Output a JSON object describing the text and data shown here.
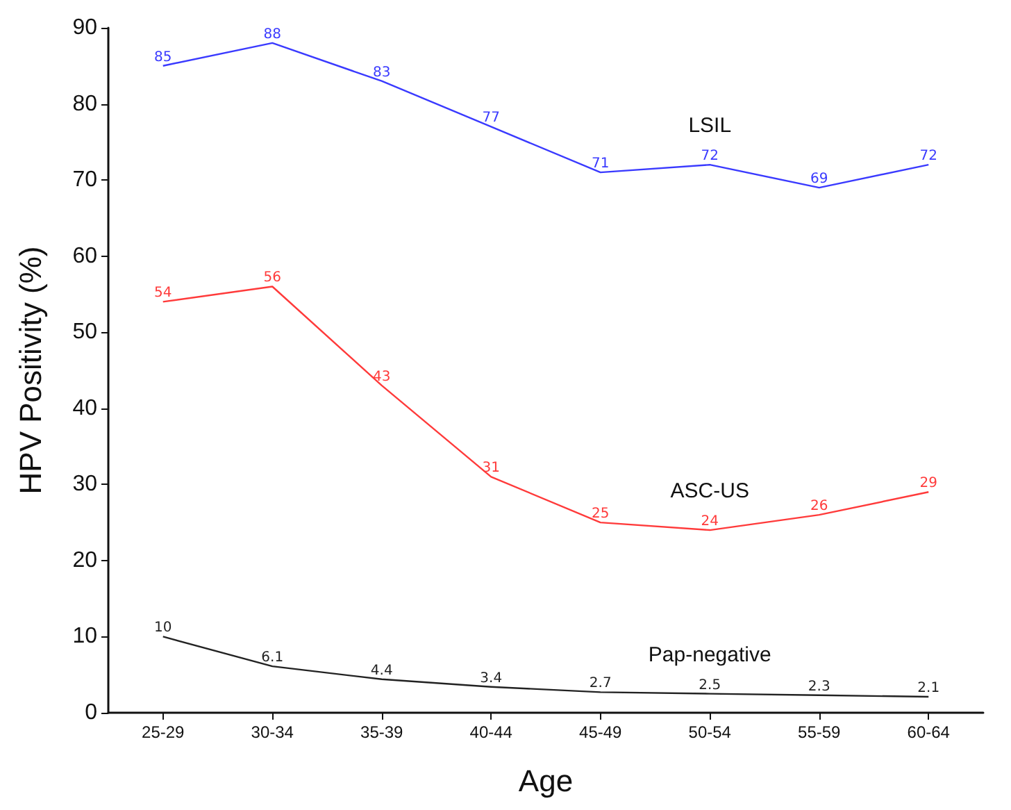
{
  "chart_data": {
    "type": "line",
    "xlabel": "Age",
    "ylabel": "HPV Positivity (%)",
    "categories": [
      "25-29",
      "30-34",
      "35-39",
      "40-44",
      "45-49",
      "50-54",
      "55-59",
      "60-64"
    ],
    "series": [
      {
        "name": "LSIL",
        "color": "#3a3aff",
        "values": [
          85,
          88,
          83,
          77,
          71,
          72,
          69,
          72
        ]
      },
      {
        "name": "ASC-US",
        "color": "#ff3a3a",
        "values": [
          54,
          56,
          43,
          31,
          25,
          24,
          26,
          29
        ]
      },
      {
        "name": "Pap-negative",
        "color": "#222222",
        "values": [
          10,
          6.1,
          4.4,
          3.4,
          2.7,
          2.5,
          2.3,
          2.1
        ]
      }
    ],
    "ylim": [
      0,
      90
    ],
    "yticks": [
      0,
      10,
      20,
      30,
      40,
      50,
      60,
      70,
      80,
      90
    ],
    "grid": false,
    "legend": false,
    "data_labels": true,
    "marker": "none"
  }
}
